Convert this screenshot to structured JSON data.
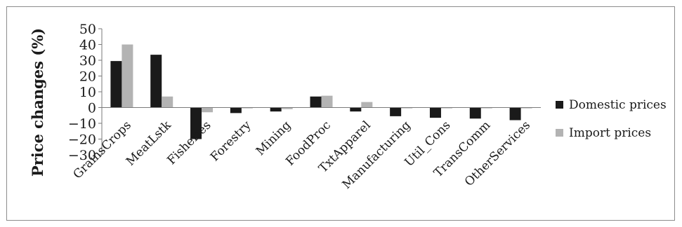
{
  "chart_data": {
    "type": "bar",
    "title": "",
    "xlabel": "",
    "ylabel": "Price changes (%)",
    "ylim": [
      -30,
      50
    ],
    "yticks": [
      50,
      40,
      30,
      20,
      10,
      0,
      -10,
      -20,
      -30
    ],
    "grid": false,
    "legend_position": "right",
    "categories": [
      "GrainsCrops",
      "MeatLstk",
      "Fisheries",
      "Forestry",
      "Mining",
      "FoodProc",
      "TxtApparel",
      "Manufacturing",
      "Util_Cons",
      "TransComm",
      "OtherServices"
    ],
    "series": [
      {
        "name": "Domestic prices",
        "color": "#1a1a1a",
        "values": [
          29.5,
          33.5,
          -20,
          -3.5,
          -2.5,
          7,
          -2.5,
          -5.5,
          -6.5,
          -7,
          -8
        ]
      },
      {
        "name": "Import prices",
        "color": "#b3b3b3",
        "values": [
          40,
          7,
          -3,
          -0.5,
          -1,
          7.5,
          3.5,
          -0.5,
          -0.5,
          -0.5,
          -0.5
        ]
      }
    ]
  }
}
